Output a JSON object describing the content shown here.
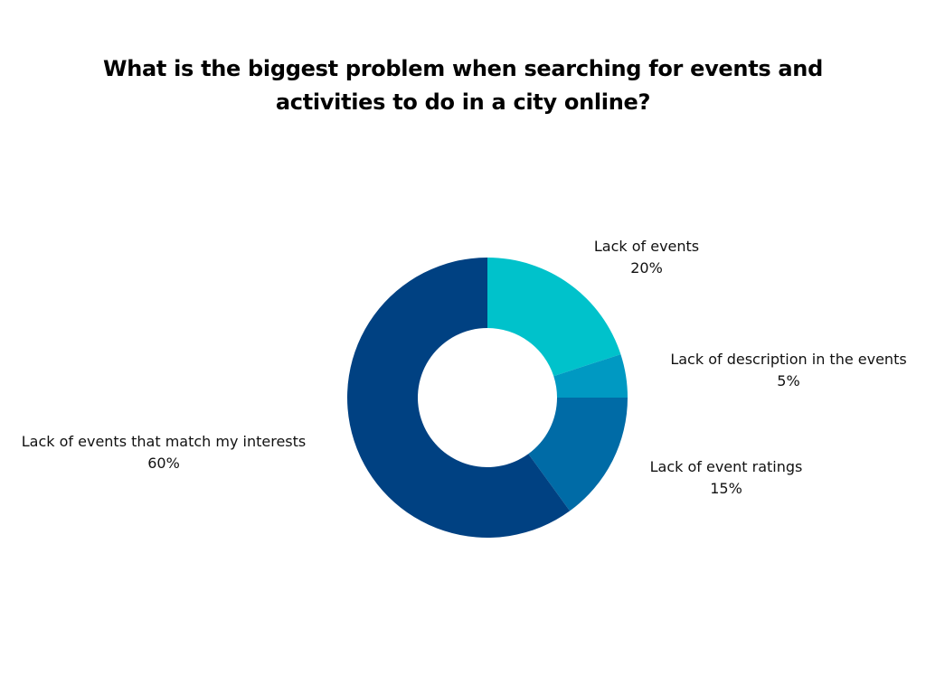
{
  "chart_data": {
    "type": "pie",
    "donut": true,
    "title": "What is the biggest problem when searching for events and activities to do in a city online?",
    "slices": [
      {
        "label": "Lack of events",
        "value": 20,
        "value_label": "20%",
        "color": "#00C2CB"
      },
      {
        "label": "Lack of description in the events",
        "value": 5,
        "value_label": "5%",
        "color": "#0099C2"
      },
      {
        "label": "Lack of event ratings",
        "value": 15,
        "value_label": "15%",
        "color": "#006BA6"
      },
      {
        "label": "Lack of events that match my interests",
        "value": 60,
        "value_label": "60%",
        "color": "#004182"
      }
    ]
  }
}
